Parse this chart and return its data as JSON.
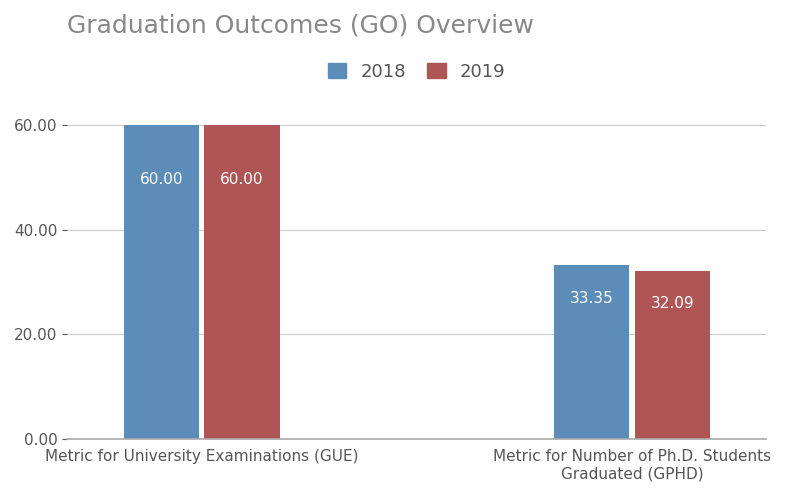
{
  "title": "Graduation Outcomes (GO) Overview",
  "title_fontsize": 18,
  "title_color": "#888888",
  "categories": [
    "Metric for University Examinations (GUE)",
    "Metric for Number of Ph.D. Students\nGraduated (GPHD)"
  ],
  "series": {
    "2018": [
      60.0,
      33.35
    ],
    "2019": [
      60.0,
      32.09
    ]
  },
  "bar_colors": {
    "2018": "#5b8db8",
    "2019": "#b05555"
  },
  "ylim": [
    0,
    67
  ],
  "yticks": [
    0.0,
    20.0,
    40.0,
    60.0
  ],
  "bar_width": 0.28,
  "group_positions": [
    0.3,
    0.75
  ],
  "label_fontsize": 11,
  "label_color": "#ffffff",
  "tick_fontsize": 11,
  "tick_color": "#555555",
  "grid_color": "#cccccc",
  "background_color": "#ffffff",
  "legend_fontsize": 13
}
